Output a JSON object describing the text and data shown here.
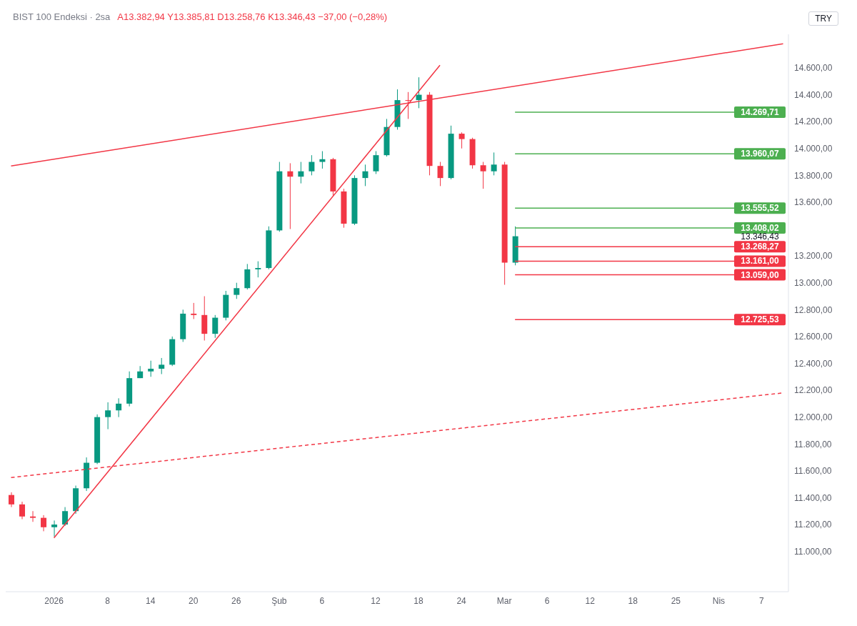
{
  "chart_data": {
    "type": "candlestick",
    "title": "BIST 100 Endeksi · 2sa",
    "subtitle": "A13.382,94 Y13.385,81 D13.258,76 K13.346,43 −37,00 (−0,28%)",
    "ylabel": "TRY",
    "categories": [
      null,
      null,
      null,
      null,
      "2026",
      null,
      null,
      null,
      null,
      "8",
      null,
      null,
      null,
      "14",
      null,
      null,
      null,
      "20",
      null,
      null,
      null,
      "26",
      null,
      null,
      null,
      "Şub",
      null,
      null,
      null,
      "6",
      null,
      null,
      null,
      null,
      "12",
      null,
      null,
      null,
      "18",
      null,
      null,
      null,
      "24",
      null,
      null,
      null,
      "Mar",
      null,
      null,
      null,
      "6",
      null,
      null,
      null,
      "12",
      null,
      null,
      null,
      "18",
      null,
      null,
      null,
      "25",
      null,
      null,
      null,
      "Nis",
      null,
      null,
      null,
      "7",
      null,
      null
    ],
    "ohlc": [
      [
        11420,
        11440,
        11330,
        11350
      ],
      [
        11350,
        11370,
        11240,
        11260
      ],
      [
        11260,
        11300,
        11220,
        11250
      ],
      [
        11250,
        11270,
        11150,
        11180
      ],
      [
        11180,
        11230,
        11110,
        11200
      ],
      [
        11200,
        11330,
        11190,
        11300
      ],
      [
        11300,
        11490,
        11280,
        11470
      ],
      [
        11470,
        11700,
        11450,
        11660
      ],
      [
        11660,
        12020,
        11650,
        12000
      ],
      [
        12000,
        12110,
        11910,
        12050
      ],
      [
        12050,
        12140,
        12000,
        12100
      ],
      [
        12100,
        12340,
        12080,
        12290
      ],
      [
        12290,
        12380,
        12290,
        12340
      ],
      [
        12340,
        12420,
        12300,
        12360
      ],
      [
        12360,
        12440,
        12320,
        12390
      ],
      [
        12390,
        12600,
        12380,
        12580
      ],
      [
        12580,
        12800,
        12560,
        12770
      ],
      [
        12770,
        12850,
        12730,
        12760
      ],
      [
        12760,
        12900,
        12570,
        12620
      ],
      [
        12620,
        12760,
        12590,
        12740
      ],
      [
        12740,
        12940,
        12720,
        12910
      ],
      [
        12910,
        13000,
        12880,
        12960
      ],
      [
        12960,
        13140,
        12950,
        13100
      ],
      [
        13100,
        13160,
        13040,
        13110
      ],
      [
        13110,
        13420,
        13100,
        13390
      ],
      [
        13390,
        13900,
        13380,
        13830
      ],
      [
        13830,
        13890,
        13400,
        13790
      ],
      [
        13790,
        13900,
        13740,
        13830
      ],
      [
        13830,
        13950,
        13800,
        13900
      ],
      [
        13900,
        13980,
        13850,
        13920
      ],
      [
        13920,
        13930,
        13650,
        13680
      ],
      [
        13680,
        13700,
        13410,
        13440
      ],
      [
        13440,
        13800,
        13430,
        13780
      ],
      [
        13780,
        13880,
        13720,
        13830
      ],
      [
        13830,
        13980,
        13810,
        13950
      ],
      [
        13950,
        14220,
        13940,
        14160
      ],
      [
        14160,
        14440,
        14140,
        14360
      ],
      [
        14360,
        14420,
        14220,
        14360
      ],
      [
        14360,
        14530,
        14300,
        14400
      ],
      [
        14400,
        14420,
        13800,
        13870
      ],
      [
        13870,
        13900,
        13720,
        13780
      ],
      [
        13780,
        14170,
        13770,
        14110
      ],
      [
        14110,
        14120,
        14000,
        14070
      ],
      [
        14070,
        14080,
        13850,
        13875
      ],
      [
        13875,
        13900,
        13700,
        13830
      ],
      [
        13830,
        13970,
        13800,
        13880
      ],
      [
        13880,
        13900,
        12985,
        13150
      ],
      [
        13150,
        13420,
        13130,
        13346.43
      ],
      null,
      null,
      null,
      null,
      null,
      null,
      null,
      null,
      null,
      null,
      null,
      null,
      null,
      null,
      null,
      null,
      null,
      null,
      null,
      null,
      null,
      null,
      null,
      null,
      null
    ],
    "colors": [
      "#f23645",
      "#f23645",
      "#f23645",
      "#f23645",
      "#089981",
      "#089981",
      "#089981",
      "#089981",
      "#089981",
      "#089981",
      "#089981",
      "#089981",
      "#089981",
      "#089981",
      "#089981",
      "#089981",
      "#089981",
      "#f23645",
      "#f23645",
      "#089981",
      "#089981",
      "#089981",
      "#089981",
      "#089981",
      "#089981",
      "#089981",
      "#f23645",
      "#089981",
      "#089981",
      "#089981",
      "#f23645",
      "#f23645",
      "#089981",
      "#089981",
      "#089981",
      "#089981",
      "#089981",
      "#f23645",
      "#089981",
      "#f23645",
      "#f23645",
      "#089981",
      "#f23645",
      "#f23645",
      "#f23645",
      "#089981",
      "#f23645",
      "#089981",
      null,
      null,
      null,
      null,
      null,
      null,
      null,
      null,
      null,
      null,
      null,
      null,
      null,
      null,
      null,
      null,
      null,
      null,
      null,
      null,
      null,
      null,
      null,
      null,
      null
    ],
    "series": [
      {
        "type": "line",
        "color": "#f23645",
        "line_style": "solid",
        "values": [
          13870,
          null,
          null,
          null,
          null,
          null,
          null,
          null,
          null,
          null,
          null,
          null,
          null,
          null,
          null,
          null,
          null,
          null,
          null,
          null,
          null,
          null,
          null,
          null,
          null,
          null,
          null,
          null,
          null,
          null,
          null,
          null,
          null,
          null,
          null,
          null,
          null,
          null,
          null,
          null,
          null,
          null,
          null,
          null,
          null,
          null,
          null,
          null,
          null,
          null,
          null,
          null,
          null,
          null,
          null,
          null,
          null,
          null,
          null,
          null,
          null,
          null,
          null,
          null,
          null,
          null,
          null,
          null,
          null,
          null,
          null,
          null,
          14780
        ]
      },
      {
        "type": "line",
        "color": "#f23645",
        "line_style": "solid",
        "values": [
          null,
          null,
          null,
          null,
          11100,
          null,
          null,
          null,
          null,
          null,
          null,
          null,
          null,
          null,
          null,
          null,
          null,
          null,
          null,
          null,
          null,
          null,
          null,
          null,
          null,
          null,
          null,
          null,
          null,
          null,
          null,
          null,
          null,
          null,
          null,
          null,
          null,
          null,
          null,
          null,
          14620,
          null,
          null,
          null,
          null,
          null,
          null,
          null,
          null,
          null,
          null,
          null,
          null,
          null,
          null,
          null,
          null,
          null,
          null,
          null,
          null,
          null,
          null,
          null,
          null,
          null,
          null,
          null,
          null,
          null,
          null,
          null,
          null
        ]
      },
      {
        "type": "line",
        "color": "#f23645",
        "line_style": "dashed",
        "values": [
          11550,
          null,
          null,
          null,
          null,
          null,
          null,
          null,
          null,
          null,
          null,
          null,
          null,
          null,
          null,
          null,
          null,
          null,
          null,
          null,
          null,
          null,
          null,
          null,
          null,
          null,
          null,
          null,
          null,
          null,
          null,
          null,
          null,
          null,
          null,
          null,
          null,
          null,
          null,
          null,
          null,
          null,
          null,
          null,
          null,
          null,
          null,
          null,
          null,
          null,
          null,
          null,
          null,
          null,
          null,
          null,
          null,
          null,
          null,
          null,
          null,
          null,
          null,
          null,
          null,
          null,
          null,
          null,
          null,
          null,
          null,
          null,
          12180
        ]
      }
    ],
    "ref_lines": [
      {
        "axis": "y",
        "value": 14269.71,
        "label": "14.269,71",
        "color": "#4caf50"
      },
      {
        "axis": "y",
        "value": 13960.07,
        "label": "13.960,07",
        "color": "#4caf50"
      },
      {
        "axis": "y",
        "value": 13555.52,
        "label": "13.555,52",
        "color": "#4caf50"
      },
      {
        "axis": "y",
        "value": 13408.02,
        "label": "13.408,02",
        "color": "#4caf50"
      },
      {
        "axis": "y",
        "value": 13268.27,
        "label": "13.268,27",
        "color": "#f23645"
      },
      {
        "axis": "y",
        "value": 13161,
        "label": "13.161,00",
        "color": "#f23645"
      },
      {
        "axis": "y",
        "value": 13059,
        "label": "13.059,00",
        "color": "#f23645"
      },
      {
        "axis": "y",
        "value": 12725.53,
        "label": "12.725,53",
        "color": "#f23645"
      }
    ],
    "annotations": [
      "13.346,43"
    ],
    "ylim": [
      10700,
      14850
    ],
    "yticks": [
      {
        "value": 11000,
        "label": "11.000,00"
      },
      {
        "value": 11200,
        "label": "11.200,00"
      },
      {
        "value": 11400,
        "label": "11.400,00"
      },
      {
        "value": 11600,
        "label": "11.600,00"
      },
      {
        "value": 11800,
        "label": "11.800,00"
      },
      {
        "value": 12000,
        "label": "12.000,00"
      },
      {
        "value": 12200,
        "label": "12.200,00"
      },
      {
        "value": 12400,
        "label": "12.400,00"
      },
      {
        "value": 12600,
        "label": "12.600,00"
      },
      {
        "value": 12800,
        "label": "12.800,00"
      },
      {
        "value": 13000,
        "label": "13.000,00"
      },
      {
        "value": 13200,
        "label": "13.200,00"
      },
      {
        "value": 13600,
        "label": "13.600,00"
      },
      {
        "value": 13800,
        "label": "13.800,00"
      },
      {
        "value": 14000,
        "label": "14.000,00"
      },
      {
        "value": 14200,
        "label": "14.200,00"
      },
      {
        "value": 14400,
        "label": "14.400,00"
      },
      {
        "value": 14600,
        "label": "14.600,00"
      }
    ],
    "grid": false
  }
}
